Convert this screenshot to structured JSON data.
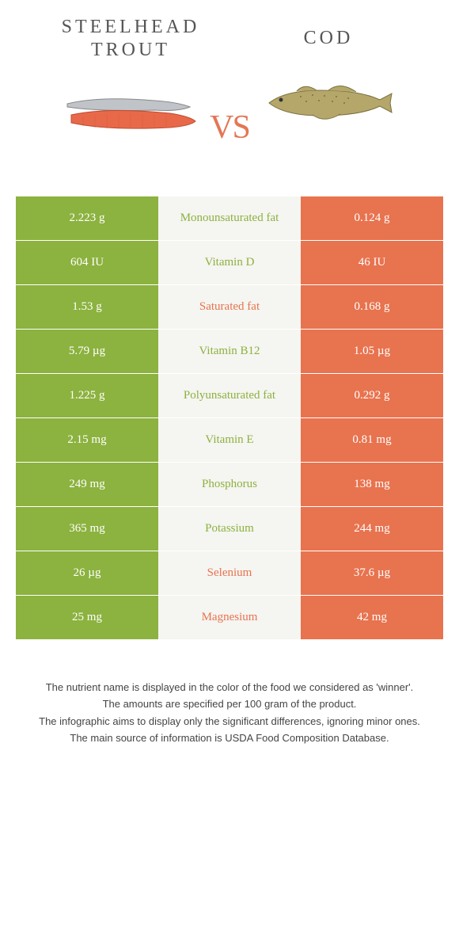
{
  "colors": {
    "left": "#8cb23f",
    "right": "#e8734f",
    "mid_bg": "#f5f5f1"
  },
  "left_food": {
    "title": "STEELHEAD TROUT"
  },
  "right_food": {
    "title": "COD"
  },
  "vs": "vs",
  "rows": [
    {
      "left": "2.223 g",
      "name": "Monounsaturated fat",
      "right": "0.124 g",
      "winner": "left"
    },
    {
      "left": "604 IU",
      "name": "Vitamin D",
      "right": "46 IU",
      "winner": "left"
    },
    {
      "left": "1.53 g",
      "name": "Saturated fat",
      "right": "0.168 g",
      "winner": "right"
    },
    {
      "left": "5.79 µg",
      "name": "Vitamin B12",
      "right": "1.05 µg",
      "winner": "left"
    },
    {
      "left": "1.225 g",
      "name": "Polyunsaturated fat",
      "right": "0.292 g",
      "winner": "left"
    },
    {
      "left": "2.15 mg",
      "name": "Vitamin E",
      "right": "0.81 mg",
      "winner": "left"
    },
    {
      "left": "249 mg",
      "name": "Phosphorus",
      "right": "138 mg",
      "winner": "left"
    },
    {
      "left": "365 mg",
      "name": "Potassium",
      "right": "244 mg",
      "winner": "left"
    },
    {
      "left": "26 µg",
      "name": "Selenium",
      "right": "37.6 µg",
      "winner": "right"
    },
    {
      "left": "25 mg",
      "name": "Magnesium",
      "right": "42 mg",
      "winner": "right"
    }
  ],
  "footnotes": [
    "The nutrient name is displayed in the color of the food we considered as 'winner'.",
    "The amounts are specified per 100 gram of the product.",
    "The infographic aims to display only the significant differences, ignoring minor ones.",
    "The main source of information is USDA Food Composition Database."
  ]
}
